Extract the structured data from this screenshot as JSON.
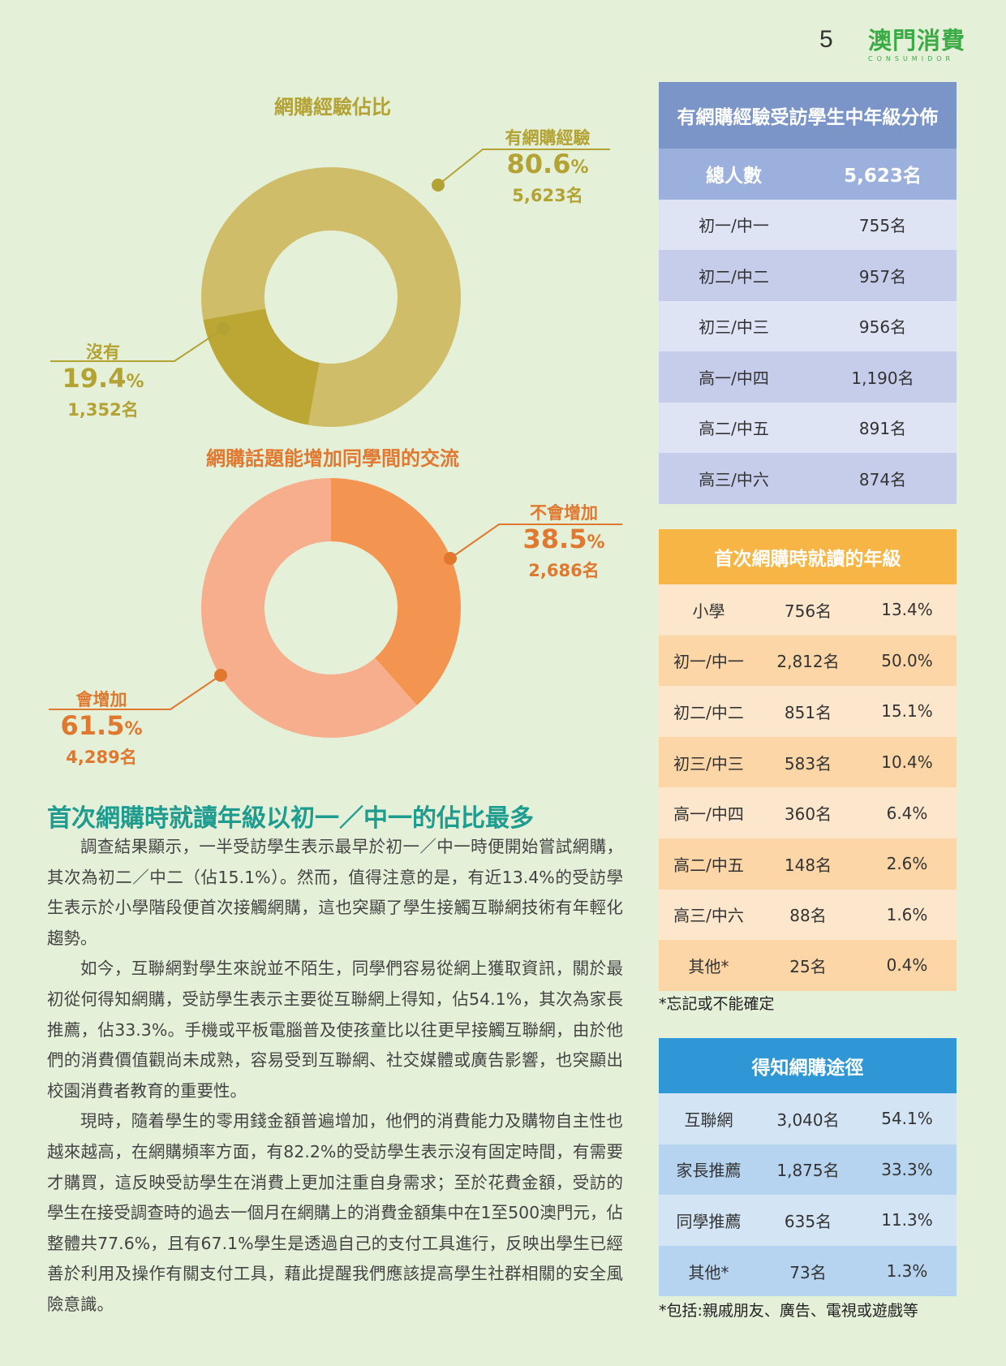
{
  "header": {
    "page_number": "5",
    "logo_text": "澳門消費",
    "logo_sub": "CONSUMIDOR"
  },
  "chart1": {
    "title": "網購經驗佔比",
    "colors": {
      "yes": "#d0bd6a",
      "no": "#bda734"
    },
    "slices": [
      {
        "name": "有網購經驗",
        "pct_text": "80.6",
        "pct_sign": "%",
        "count": "5,623名",
        "value": 80.6
      },
      {
        "name": "沒有",
        "pct_text": "19.4",
        "pct_sign": "%",
        "count": "1,352名",
        "value": 19.4
      }
    ]
  },
  "chart2": {
    "title": "網購話題能增加同學間的交流",
    "colors": {
      "no": "#f39550",
      "yes": "#f7ae8c"
    },
    "slices": [
      {
        "name": "不會增加",
        "pct_text": "38.5",
        "pct_sign": "%",
        "count": "2,686名",
        "value": 38.5
      },
      {
        "name": "會增加",
        "pct_text": "61.5",
        "pct_sign": "%",
        "count": "4,289名",
        "value": 61.5
      }
    ]
  },
  "article": {
    "heading": "首次網購時就讀年級以初一／中一的佔比最多",
    "paragraphs": [
      "調查結果顯示，一半受訪學生表示最早於初一／中一時便開始嘗試網購，其次為初二／中二（佔15.1%）。然而，值得注意的是，有近13.4%的受訪學生表示於小學階段便首次接觸網購，這也突顯了學生接觸互聯網技術有年輕化趨勢。",
      "如今，互聯網對學生來說並不陌生，同學們容易從網上獲取資訊，關於最初從何得知網購，受訪學生表示主要從互聯網上得知，佔54.1%，其次為家長推薦，佔33.3%。手機或平板電腦普及使孩童比以往更早接觸互聯網，由於他們的消費價值觀尚未成熟，容易受到互聯網、社交媒體或廣告影響，也突顯出校園消費者教育的重要性。",
      "現時，隨着學生的零用錢金額普遍增加，他們的消費能力及購物自主性也越來越高，在網購頻率方面，有82.2%的受訪學生表示沒有固定時間，有需要才購買，這反映受訪學生在消費上更加注重自身需求；至於花費金額，受訪的學生在接受調查時的過去一個月在網購上的消費金額集中在1至500澳門元，佔整體共77.6%，且有67.1%學生是透過自己的支付工具進行，反映出學生已經善於利用及操作有關支付工具，藉此提醒我們應該提高學生社群相關的安全風險意識。"
    ]
  },
  "table1": {
    "title": "有網購經驗受訪學生中年級分佈",
    "total_label": "總人數",
    "total_value": "5,623名",
    "rows": [
      [
        "初一/中一",
        "755名"
      ],
      [
        "初二/中二",
        "957名"
      ],
      [
        "初三/中三",
        "956名"
      ],
      [
        "高一/中四",
        "1,190名"
      ],
      [
        "高二/中五",
        "891名"
      ],
      [
        "高三/中六",
        "874名"
      ]
    ]
  },
  "table2": {
    "title": "首次網購時就讀的年級",
    "rows": [
      [
        "小學",
        "756名",
        "13.4%"
      ],
      [
        "初一/中一",
        "2,812名",
        "50.0%"
      ],
      [
        "初二/中二",
        "851名",
        "15.1%"
      ],
      [
        "初三/中三",
        "583名",
        "10.4%"
      ],
      [
        "高一/中四",
        "360名",
        "6.4%"
      ],
      [
        "高二/中五",
        "148名",
        "2.6%"
      ],
      [
        "高三/中六",
        "88名",
        "1.6%"
      ],
      [
        "其他*",
        "25名",
        "0.4%"
      ]
    ],
    "note": "*忘記或不能確定"
  },
  "table3": {
    "title": "得知網購途徑",
    "rows": [
      [
        "互聯網",
        "3,040名",
        "54.1%"
      ],
      [
        "家長推薦",
        "1,875名",
        "33.3%"
      ],
      [
        "同學推薦",
        "635名",
        "11.3%"
      ],
      [
        "其他*",
        "73名",
        "1.3%"
      ]
    ],
    "note": "*包括:親戚朋友、廣告、電視或遊戲等"
  }
}
